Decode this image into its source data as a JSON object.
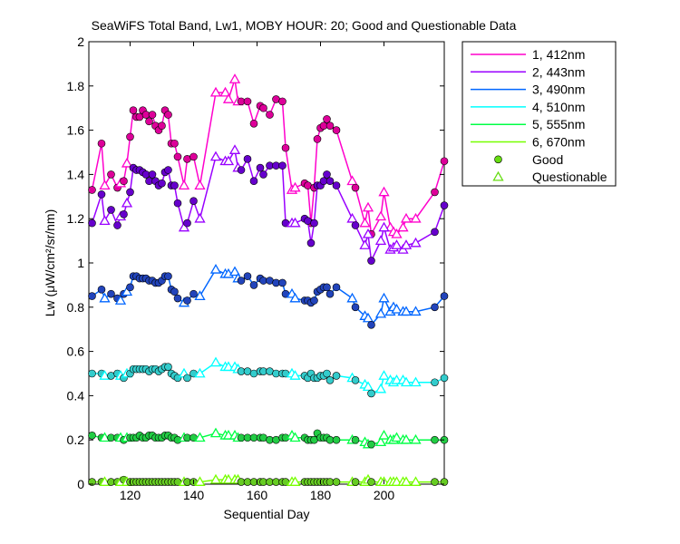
{
  "chart_data": {
    "type": "line",
    "title": "SeaWiFS Total Band,  Lw1, MOBY HOUR: 20;  Good and Questionable Data",
    "xlabel": "Sequential Day",
    "ylabel": "Lw (μW/cm²/sr/nm)",
    "xlim": [
      107,
      219
    ],
    "ylim": [
      0,
      2
    ],
    "xticks": [
      120,
      140,
      160,
      180,
      200
    ],
    "yticks": [
      0,
      0.2,
      0.4,
      0.6,
      0.8,
      1,
      1.2,
      1.4,
      1.6,
      1.8,
      2
    ],
    "x": [
      108,
      111,
      112,
      114,
      116,
      117,
      118,
      119,
      120,
      121,
      122,
      123,
      124,
      125,
      126,
      127,
      128,
      129,
      130,
      131,
      132,
      133,
      134,
      135,
      137,
      138,
      140,
      142,
      147,
      150,
      151,
      153,
      154,
      155,
      157,
      159,
      161,
      162,
      164,
      166,
      168,
      169,
      171,
      172,
      175,
      176,
      177,
      178,
      179,
      180,
      181,
      182,
      183,
      185,
      190,
      191,
      194,
      195,
      196,
      199,
      200,
      202,
      203,
      204,
      206,
      207,
      210,
      216,
      219
    ],
    "quality": [
      "G",
      "G",
      "Q",
      "G",
      "G",
      "Q",
      "G",
      "Q",
      "G",
      "G",
      "G",
      "G",
      "G",
      "G",
      "G",
      "G",
      "G",
      "G",
      "G",
      "G",
      "G",
      "G",
      "G",
      "G",
      "Q",
      "G",
      "G",
      "Q",
      "Q",
      "Q",
      "Q",
      "Q",
      "Q",
      "G",
      "G",
      "G",
      "G",
      "G",
      "G",
      "G",
      "G",
      "G",
      "Q",
      "Q",
      "G",
      "G",
      "G",
      "G",
      "G",
      "G",
      "G",
      "G",
      "G",
      "G",
      "Q",
      "G",
      "Q",
      "Q",
      "G",
      "Q",
      "Q",
      "Q",
      "Q",
      "Q",
      "Q",
      "Q",
      "Q",
      "G",
      "G"
    ],
    "series": [
      {
        "name": "1, 412nm",
        "color": "#ff00cc",
        "marker_color": "#dd0099",
        "values": [
          1.33,
          1.54,
          1.35,
          1.4,
          1.34,
          1.36,
          1.37,
          1.45,
          1.57,
          1.69,
          1.66,
          1.66,
          1.69,
          1.67,
          1.64,
          1.67,
          1.62,
          1.6,
          1.62,
          1.69,
          1.67,
          1.54,
          1.54,
          1.48,
          1.35,
          1.47,
          1.48,
          1.35,
          1.77,
          1.77,
          1.74,
          1.83,
          1.73,
          1.73,
          1.73,
          1.63,
          1.71,
          1.7,
          1.67,
          1.74,
          1.73,
          1.52,
          1.33,
          1.34,
          1.36,
          1.35,
          1.18,
          1.34,
          1.56,
          1.61,
          1.62,
          1.65,
          1.62,
          1.6,
          1.37,
          1.34,
          1.18,
          1.25,
          1.13,
          1.21,
          1.32,
          1.16,
          1.14,
          1.13,
          1.16,
          1.2,
          1.2,
          1.32,
          1.46
        ]
      },
      {
        "name": "2, 443nm",
        "color": "#9900ff",
        "marker_color": "#6600cc",
        "values": [
          1.18,
          1.31,
          1.19,
          1.24,
          1.17,
          1.21,
          1.22,
          1.27,
          1.32,
          1.43,
          1.42,
          1.42,
          1.41,
          1.4,
          1.37,
          1.4,
          1.37,
          1.35,
          1.36,
          1.41,
          1.42,
          1.35,
          1.35,
          1.27,
          1.16,
          1.18,
          1.28,
          1.2,
          1.48,
          1.46,
          1.46,
          1.51,
          1.43,
          1.42,
          1.47,
          1.37,
          1.43,
          1.4,
          1.44,
          1.44,
          1.44,
          1.18,
          1.18,
          1.18,
          1.2,
          1.19,
          1.09,
          1.18,
          1.35,
          1.35,
          1.37,
          1.4,
          1.37,
          1.35,
          1.2,
          1.17,
          1.08,
          1.13,
          1.01,
          1.1,
          1.16,
          1.06,
          1.07,
          1.08,
          1.06,
          1.08,
          1.09,
          1.14,
          1.26
        ]
      },
      {
        "name": "3, 490nm",
        "color": "#0066ff",
        "marker_color": "#2244bb",
        "values": [
          0.85,
          0.88,
          0.84,
          0.86,
          0.84,
          0.83,
          0.86,
          0.87,
          0.89,
          0.94,
          0.94,
          0.93,
          0.93,
          0.93,
          0.92,
          0.92,
          0.91,
          0.91,
          0.92,
          0.94,
          0.94,
          0.88,
          0.87,
          0.84,
          0.82,
          0.83,
          0.86,
          0.85,
          0.97,
          0.95,
          0.95,
          0.96,
          0.93,
          0.92,
          0.94,
          0.9,
          0.93,
          0.92,
          0.92,
          0.91,
          0.91,
          0.86,
          0.86,
          0.84,
          0.83,
          0.83,
          0.82,
          0.83,
          0.87,
          0.88,
          0.89,
          0.89,
          0.86,
          0.89,
          0.84,
          0.8,
          0.76,
          0.75,
          0.72,
          0.77,
          0.84,
          0.78,
          0.8,
          0.79,
          0.78,
          0.78,
          0.78,
          0.8,
          0.85
        ]
      },
      {
        "name": "4, 510nm",
        "color": "#00ffff",
        "marker_color": "#33cccc",
        "values": [
          0.5,
          0.5,
          0.49,
          0.49,
          0.5,
          0.49,
          0.48,
          0.5,
          0.5,
          0.52,
          0.52,
          0.52,
          0.52,
          0.52,
          0.51,
          0.52,
          0.52,
          0.51,
          0.52,
          0.53,
          0.53,
          0.5,
          0.49,
          0.48,
          0.5,
          0.48,
          0.5,
          0.5,
          0.55,
          0.53,
          0.53,
          0.53,
          0.52,
          0.51,
          0.51,
          0.5,
          0.51,
          0.51,
          0.51,
          0.5,
          0.5,
          0.5,
          0.5,
          0.49,
          0.49,
          0.48,
          0.5,
          0.48,
          0.48,
          0.49,
          0.49,
          0.5,
          0.47,
          0.49,
          0.48,
          0.47,
          0.45,
          0.44,
          0.41,
          0.43,
          0.49,
          0.47,
          0.46,
          0.47,
          0.47,
          0.46,
          0.46,
          0.46,
          0.48
        ]
      },
      {
        "name": "5, 555nm",
        "color": "#00ff44",
        "marker_color": "#22cc44",
        "values": [
          0.22,
          0.21,
          0.21,
          0.21,
          0.21,
          0.21,
          0.2,
          0.21,
          0.21,
          0.21,
          0.21,
          0.22,
          0.21,
          0.21,
          0.22,
          0.22,
          0.21,
          0.21,
          0.21,
          0.22,
          0.22,
          0.21,
          0.21,
          0.2,
          0.21,
          0.21,
          0.21,
          0.21,
          0.23,
          0.22,
          0.22,
          0.22,
          0.21,
          0.21,
          0.21,
          0.21,
          0.21,
          0.21,
          0.2,
          0.2,
          0.21,
          0.21,
          0.22,
          0.21,
          0.21,
          0.2,
          0.2,
          0.2,
          0.23,
          0.21,
          0.21,
          0.21,
          0.2,
          0.2,
          0.2,
          0.2,
          0.19,
          0.18,
          0.18,
          0.19,
          0.22,
          0.2,
          0.2,
          0.21,
          0.2,
          0.2,
          0.2,
          0.2,
          0.2
        ]
      },
      {
        "name": "6, 670nm",
        "color": "#77ff00",
        "marker_color": "#66cc22",
        "values": [
          0.01,
          0.01,
          0.01,
          0.01,
          0.01,
          0.01,
          0.02,
          0.01,
          0.01,
          0.01,
          0.01,
          0.01,
          0.01,
          0.01,
          0.01,
          0.01,
          0.01,
          0.01,
          0.01,
          0.01,
          0.01,
          0.01,
          0.01,
          0.01,
          0.01,
          0.01,
          0.01,
          0.01,
          0.02,
          0.02,
          0.02,
          0.02,
          0.02,
          0.01,
          0.01,
          0.01,
          0.01,
          0.01,
          0.01,
          0.01,
          0.01,
          0.01,
          0.01,
          0.01,
          0.01,
          0.01,
          0.01,
          0.01,
          0.01,
          0.01,
          0.01,
          0.01,
          0.01,
          0.01,
          0.01,
          0.01,
          0.01,
          0.02,
          0.01,
          0.01,
          0.01,
          0.01,
          0.01,
          0.01,
          0.01,
          0.01,
          0.01,
          0.01,
          0.01
        ]
      }
    ],
    "legend": {
      "placement": "outside-right",
      "entries": [
        "1, 412nm",
        "2, 443nm",
        "3, 490nm",
        "4, 510nm",
        "5, 555nm",
        "6, 670nm",
        "Good",
        "Questionable"
      ],
      "marker_color": "#66dd11",
      "good_label": "Good",
      "questionable_label": "Questionable"
    },
    "grid": false
  }
}
